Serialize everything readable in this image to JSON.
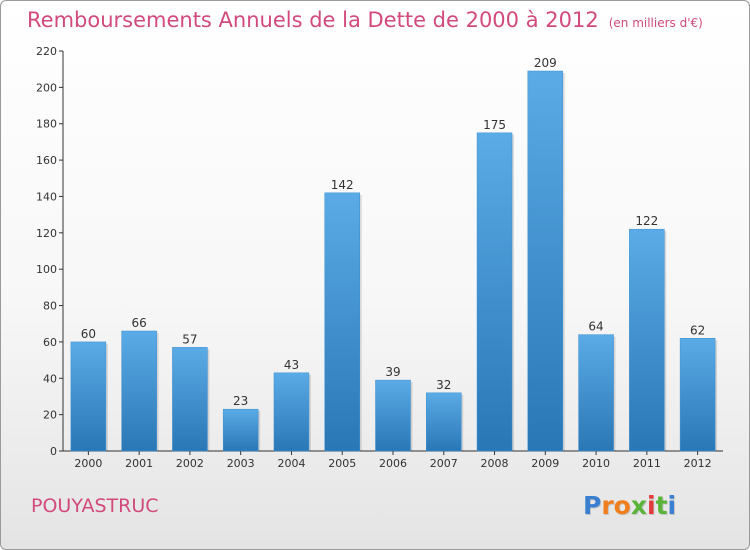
{
  "chart_data": {
    "type": "bar",
    "title": "Remboursements Annuels de la Dette de 2000 à 2012",
    "subtitle": "(en milliers d'€)",
    "xlabel": "",
    "ylabel": "",
    "categories": [
      "2000",
      "2001",
      "2002",
      "2003",
      "2004",
      "2005",
      "2006",
      "2007",
      "2008",
      "2009",
      "2010",
      "2011",
      "2012"
    ],
    "values": [
      60,
      66,
      57,
      23,
      43,
      142,
      39,
      32,
      175,
      209,
      64,
      122,
      62
    ],
    "ylim": [
      0,
      220
    ],
    "yticks": [
      0,
      20,
      40,
      60,
      80,
      100,
      120,
      140,
      160,
      180,
      200,
      220
    ],
    "grid": false,
    "data_labels": true
  },
  "commune": "POUYASTRUC",
  "logo": {
    "letters": [
      "P",
      "r",
      "o",
      "x",
      "i",
      "t",
      "i"
    ],
    "colors": [
      "#3a7fd0",
      "#f07e1e",
      "#f07e1e",
      "#5bb43a",
      "#e23a3a",
      "#5bb43a",
      "#3a7fd0"
    ]
  },
  "colors": {
    "title": "#d24a7c",
    "bar_light": "#5aabe6",
    "bar_dark": "#2a77b6",
    "axis": "#333333",
    "text": "#333333"
  }
}
